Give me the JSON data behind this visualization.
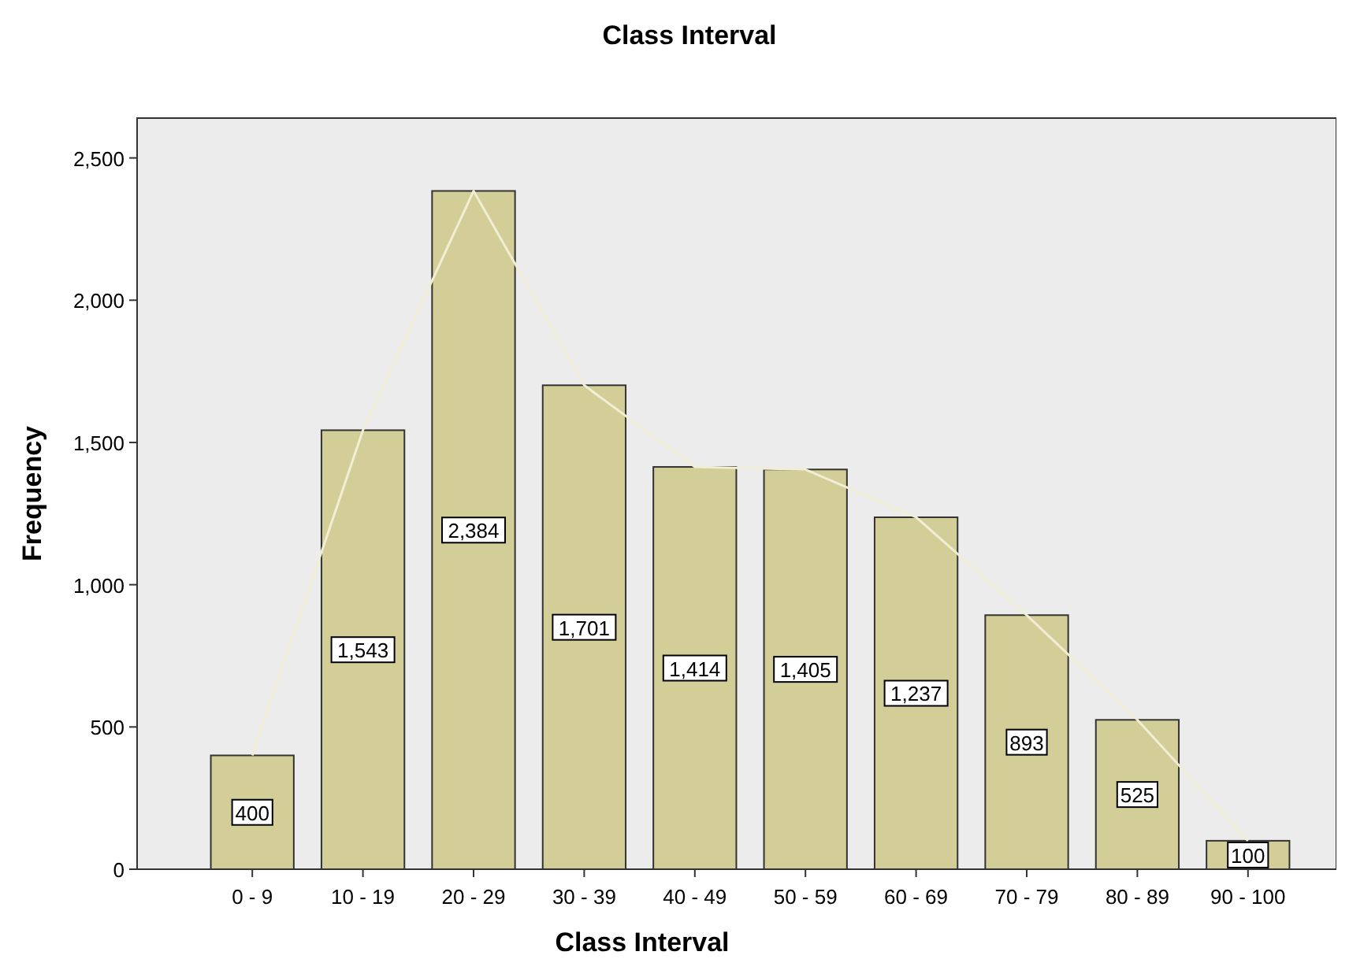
{
  "chart_data": {
    "type": "bar",
    "title": "Class Interval",
    "xlabel": "Class Interval",
    "ylabel": "Frequency",
    "categories": [
      "0 - 9",
      "10 - 19",
      "20 - 29",
      "30 - 39",
      "40 - 49",
      "50 - 59",
      "60 - 69",
      "70 - 79",
      "80 - 89",
      "90 - 100"
    ],
    "series": [
      {
        "color": "#d3cd98",
        "values": [
          400,
          1543,
          2384,
          1701,
          1414,
          1405,
          1237,
          893,
          525,
          100
        ],
        "value_labels": [
          "400",
          "1,543",
          "2,384",
          "1,701",
          "1,414",
          "1,405",
          "1,237",
          "893",
          "525",
          "100"
        ]
      },
      {
        "type": "line",
        "color": "#f1eed6",
        "values": [
          400,
          1543,
          2384,
          1701,
          1414,
          1405,
          1237,
          893,
          525,
          100
        ]
      }
    ],
    "ylim": [
      0,
      2640
    ],
    "yticks": [
      0,
      {
        "value": 500,
        "label": "500"
      },
      {
        "value": 1000,
        "label": "1,000"
      },
      {
        "value": 1500,
        "label": "1,500"
      },
      {
        "value": 2000,
        "label": "2,000"
      },
      {
        "value": 2500,
        "label": "2,500"
      }
    ],
    "grid": false,
    "marker": "none",
    "line_style": "solid"
  }
}
